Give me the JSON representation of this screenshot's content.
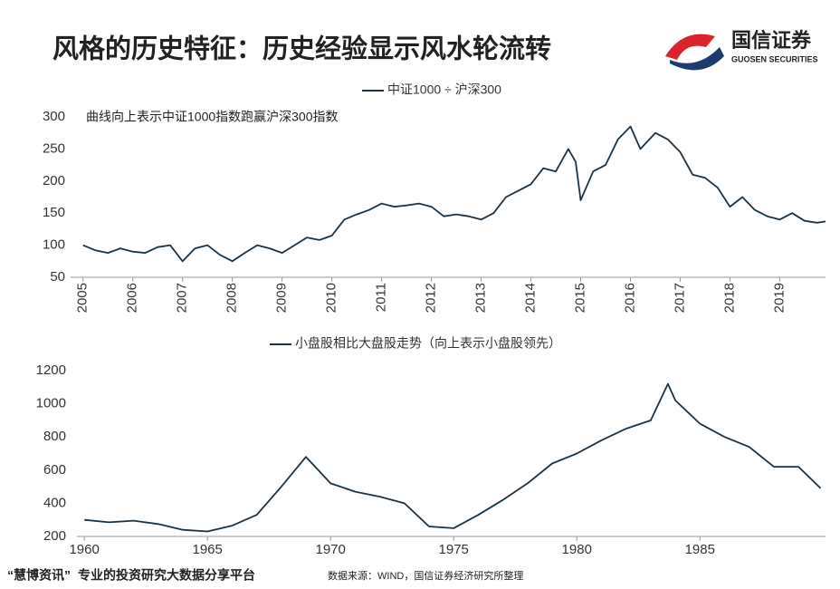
{
  "header": {
    "title": "风格的历史特征：历史经验显示风水轮流转",
    "logo": {
      "name": "国信证券",
      "sub": "GUOSEN SECURITIES"
    }
  },
  "chart_data": [
    {
      "type": "line",
      "annotation": "曲线向上表示中证1000指数跑赢沪深300指数",
      "x": [
        2005.0,
        2005.25,
        2005.5,
        2005.75,
        2006.0,
        2006.25,
        2006.5,
        2006.75,
        2007.0,
        2007.25,
        2007.5,
        2007.75,
        2008.0,
        2008.25,
        2008.5,
        2008.75,
        2009.0,
        2009.25,
        2009.5,
        2009.75,
        2010.0,
        2010.25,
        2010.5,
        2010.75,
        2011.0,
        2011.25,
        2011.5,
        2011.75,
        2012.0,
        2012.25,
        2012.5,
        2012.75,
        2013.0,
        2013.25,
        2013.5,
        2013.75,
        2014.0,
        2014.25,
        2014.5,
        2014.75,
        2014.9,
        2015.0,
        2015.25,
        2015.5,
        2015.75,
        2016.0,
        2016.2,
        2016.5,
        2016.75,
        2017.0,
        2017.25,
        2017.5,
        2017.75,
        2018.0,
        2018.25,
        2018.5,
        2018.75,
        2019.0,
        2019.25,
        2019.5,
        2019.75,
        2019.92
      ],
      "series": [
        {
          "name": "中证1000 ÷ 沪深300",
          "color": "#1b3344",
          "values": [
            100,
            92,
            88,
            95,
            90,
            88,
            97,
            100,
            75,
            95,
            100,
            85,
            75,
            88,
            100,
            95,
            88,
            100,
            112,
            108,
            115,
            140,
            148,
            155,
            165,
            160,
            162,
            165,
            160,
            145,
            148,
            145,
            140,
            150,
            175,
            185,
            195,
            220,
            215,
            250,
            230,
            170,
            215,
            225,
            265,
            285,
            250,
            275,
            265,
            245,
            210,
            205,
            190,
            160,
            175,
            155,
            145,
            140,
            150,
            138,
            135,
            137
          ]
        }
      ],
      "xlim": [
        2004.75,
        2019.92
      ],
      "xticks": [
        2005,
        2006,
        2007,
        2008,
        2009,
        2010,
        2011,
        2012,
        2013,
        2014,
        2015,
        2016,
        2017,
        2018,
        2019
      ],
      "ylim": [
        50,
        300
      ],
      "yticks": [
        50,
        100,
        150,
        200,
        250,
        300
      ],
      "grid": false
    },
    {
      "type": "line",
      "x": [
        1960,
        1961,
        1962,
        1963,
        1964,
        1965,
        1966,
        1967,
        1968,
        1969,
        1969.5,
        1970,
        1971,
        1972,
        1973,
        1974,
        1975,
        1976,
        1977,
        1978,
        1979,
        1980,
        1981,
        1982,
        1983,
        1983.7,
        1984,
        1985,
        1986,
        1987,
        1988,
        1989,
        1989.9
      ],
      "series": [
        {
          "name": "小盘股相比大盘股走势（向上表示小盘股领先）",
          "color": "#1b3344",
          "values": [
            300,
            285,
            295,
            275,
            240,
            230,
            265,
            330,
            500,
            680,
            600,
            520,
            470,
            440,
            400,
            260,
            250,
            330,
            420,
            520,
            640,
            700,
            780,
            850,
            900,
            1120,
            1020,
            880,
            800,
            740,
            620,
            620,
            490
          ]
        }
      ],
      "xlim": [
        1959.7,
        1990.1
      ],
      "xticks": [
        1960,
        1965,
        1970,
        1975,
        1980,
        1985
      ],
      "ylim": [
        200,
        1200
      ],
      "yticks": [
        200,
        400,
        600,
        800,
        1000,
        1200
      ],
      "grid": false
    }
  ],
  "footer": {
    "brand": "“慧博资讯”",
    "slogan": "专业的投资研究大数据分享平台",
    "source": "数据来源：WIND，国信证券经济研究所整理"
  }
}
